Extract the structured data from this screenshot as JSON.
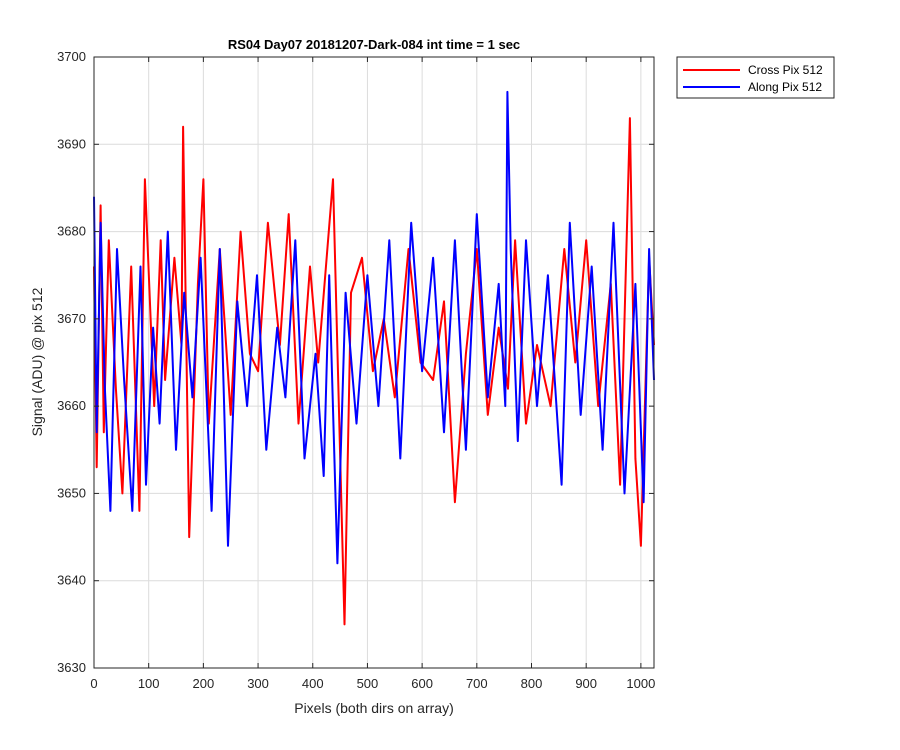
{
  "chart_data": {
    "type": "line",
    "title": "RS04 Day07 20181207-Dark-084 int time = 1 sec",
    "xlabel": "Pixels (both dirs on array)",
    "ylabel": "Signal (ADU) @ pix 512",
    "xlim": [
      0,
      1024
    ],
    "ylim": [
      3630,
      3700
    ],
    "xticks": [
      0,
      100,
      200,
      300,
      400,
      500,
      600,
      700,
      800,
      900,
      1000
    ],
    "yticks": [
      3630,
      3640,
      3650,
      3660,
      3670,
      3680,
      3690,
      3700
    ],
    "grid": true,
    "legend_position": "outside top-right",
    "series": [
      {
        "name": "Cross Pix 512",
        "color": "#ff0000",
        "x": [
          0,
          5,
          12,
          18,
          27,
          40,
          52,
          68,
          83,
          93,
          110,
          122,
          130,
          147,
          160,
          163,
          174,
          190,
          200,
          210,
          230,
          250,
          268,
          285,
          300,
          318,
          340,
          356,
          374,
          395,
          410,
          437,
          458,
          470,
          490,
          510,
          530,
          550,
          575,
          597,
          620,
          640,
          660,
          680,
          700,
          720,
          740,
          757,
          770,
          790,
          810,
          835,
          860,
          880,
          900,
          922,
          945,
          962,
          980,
          990,
          1000,
          1015,
          1024
        ],
        "y": [
          3676,
          3653,
          3683,
          3657,
          3679,
          3662,
          3650,
          3676,
          3648,
          3686,
          3660,
          3679,
          3663,
          3677,
          3667,
          3692,
          3645,
          3674,
          3686,
          3658,
          3678,
          3659,
          3680,
          3666,
          3664,
          3681,
          3667,
          3682,
          3658,
          3676,
          3665,
          3686,
          3635,
          3673,
          3677,
          3664,
          3670,
          3661,
          3678,
          3665,
          3663,
          3672,
          3649,
          3666,
          3678,
          3659,
          3669,
          3662,
          3679,
          3658,
          3667,
          3660,
          3678,
          3665,
          3679,
          3660,
          3674,
          3651,
          3693,
          3654,
          3644,
          3677,
          3667
        ]
      },
      {
        "name": "Along Pix 512",
        "color": "#0000ff",
        "x": [
          0,
          5,
          12,
          20,
          30,
          42,
          55,
          70,
          85,
          95,
          108,
          120,
          135,
          150,
          165,
          180,
          195,
          215,
          230,
          245,
          262,
          280,
          298,
          315,
          335,
          350,
          368,
          385,
          405,
          420,
          430,
          445,
          460,
          480,
          500,
          520,
          540,
          560,
          580,
          600,
          620,
          640,
          660,
          680,
          700,
          720,
          740,
          752,
          756,
          762,
          775,
          790,
          810,
          830,
          855,
          870,
          890,
          910,
          930,
          950,
          970,
          990,
          1005,
          1015,
          1024
        ],
        "y": [
          3684,
          3657,
          3681,
          3662,
          3648,
          3678,
          3663,
          3648,
          3676,
          3651,
          3669,
          3658,
          3680,
          3655,
          3673,
          3661,
          3677,
          3648,
          3678,
          3644,
          3672,
          3660,
          3675,
          3655,
          3669,
          3661,
          3679,
          3654,
          3666,
          3652,
          3675,
          3642,
          3673,
          3658,
          3675,
          3660,
          3679,
          3654,
          3681,
          3664,
          3677,
          3657,
          3679,
          3655,
          3682,
          3661,
          3674,
          3660,
          3696,
          3678,
          3656,
          3679,
          3660,
          3675,
          3651,
          3681,
          3659,
          3676,
          3655,
          3681,
          3650,
          3674,
          3649,
          3678,
          3663
        ]
      }
    ]
  }
}
